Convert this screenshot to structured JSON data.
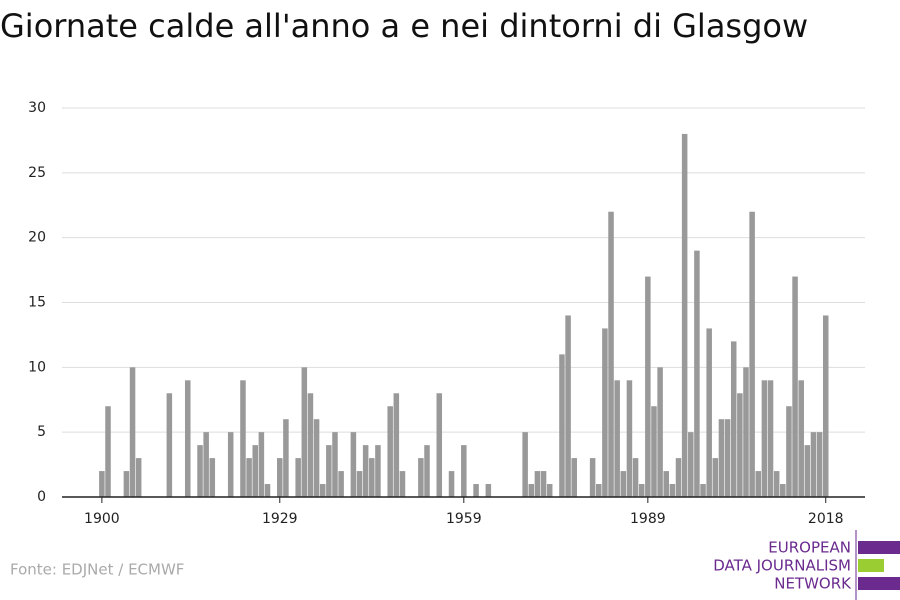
{
  "chart_data": {
    "type": "bar",
    "title": "Giornate calde all'anno a e nei dintorni di Glasgow",
    "x": [
      1900,
      1901,
      1902,
      1903,
      1904,
      1905,
      1906,
      1907,
      1908,
      1909,
      1910,
      1911,
      1912,
      1913,
      1914,
      1915,
      1916,
      1917,
      1918,
      1919,
      1920,
      1921,
      1922,
      1923,
      1924,
      1925,
      1926,
      1927,
      1928,
      1929,
      1930,
      1931,
      1932,
      1933,
      1934,
      1935,
      1936,
      1937,
      1938,
      1939,
      1940,
      1941,
      1942,
      1943,
      1944,
      1945,
      1946,
      1947,
      1948,
      1949,
      1950,
      1951,
      1952,
      1953,
      1954,
      1955,
      1956,
      1957,
      1958,
      1959,
      1960,
      1961,
      1962,
      1963,
      1964,
      1965,
      1966,
      1967,
      1968,
      1969,
      1970,
      1971,
      1972,
      1973,
      1974,
      1975,
      1976,
      1977,
      1978,
      1979,
      1980,
      1981,
      1982,
      1983,
      1984,
      1985,
      1986,
      1987,
      1988,
      1989,
      1990,
      1991,
      1992,
      1993,
      1994,
      1995,
      1996,
      1997,
      1998,
      1999,
      2000,
      2001,
      2002,
      2003,
      2004,
      2005,
      2006,
      2007,
      2008,
      2009,
      2010,
      2011,
      2012,
      2013,
      2014,
      2015,
      2016,
      2017,
      2018
    ],
    "values": [
      2,
      7,
      0,
      0,
      2,
      10,
      3,
      0,
      0,
      0,
      0,
      8,
      0,
      0,
      9,
      0,
      4,
      5,
      3,
      0,
      0,
      5,
      0,
      9,
      3,
      4,
      5,
      1,
      0,
      3,
      6,
      0,
      3,
      10,
      8,
      6,
      1,
      4,
      5,
      2,
      0,
      5,
      2,
      4,
      3,
      4,
      0,
      7,
      8,
      2,
      0,
      0,
      3,
      4,
      0,
      8,
      0,
      2,
      0,
      4,
      0,
      1,
      0,
      1,
      0,
      0,
      0,
      0,
      0,
      5,
      1,
      2,
      2,
      1,
      0,
      11,
      14,
      3,
      0,
      0,
      3,
      1,
      13,
      22,
      9,
      2,
      9,
      3,
      1,
      17,
      7,
      10,
      2,
      1,
      3,
      28,
      5,
      19,
      1,
      13,
      3,
      6,
      6,
      12,
      8,
      10,
      22,
      2,
      9,
      9,
      2,
      1,
      7,
      17,
      9,
      4,
      5,
      5,
      14
    ],
    "color": "#999999",
    "xlim": [
      1893.5,
      2024.4
    ],
    "xticks": [
      1900,
      1929,
      1959,
      1989,
      2018
    ],
    "ylim": [
      0,
      30
    ],
    "yticks": [
      0,
      5,
      10,
      15,
      20,
      25,
      30
    ],
    "grid": true
  },
  "source": "Fonte: EDJNet / ECMWF",
  "logo": [
    "EUROPEAN",
    "DATA JOURNALISM",
    "NETWORK"
  ]
}
